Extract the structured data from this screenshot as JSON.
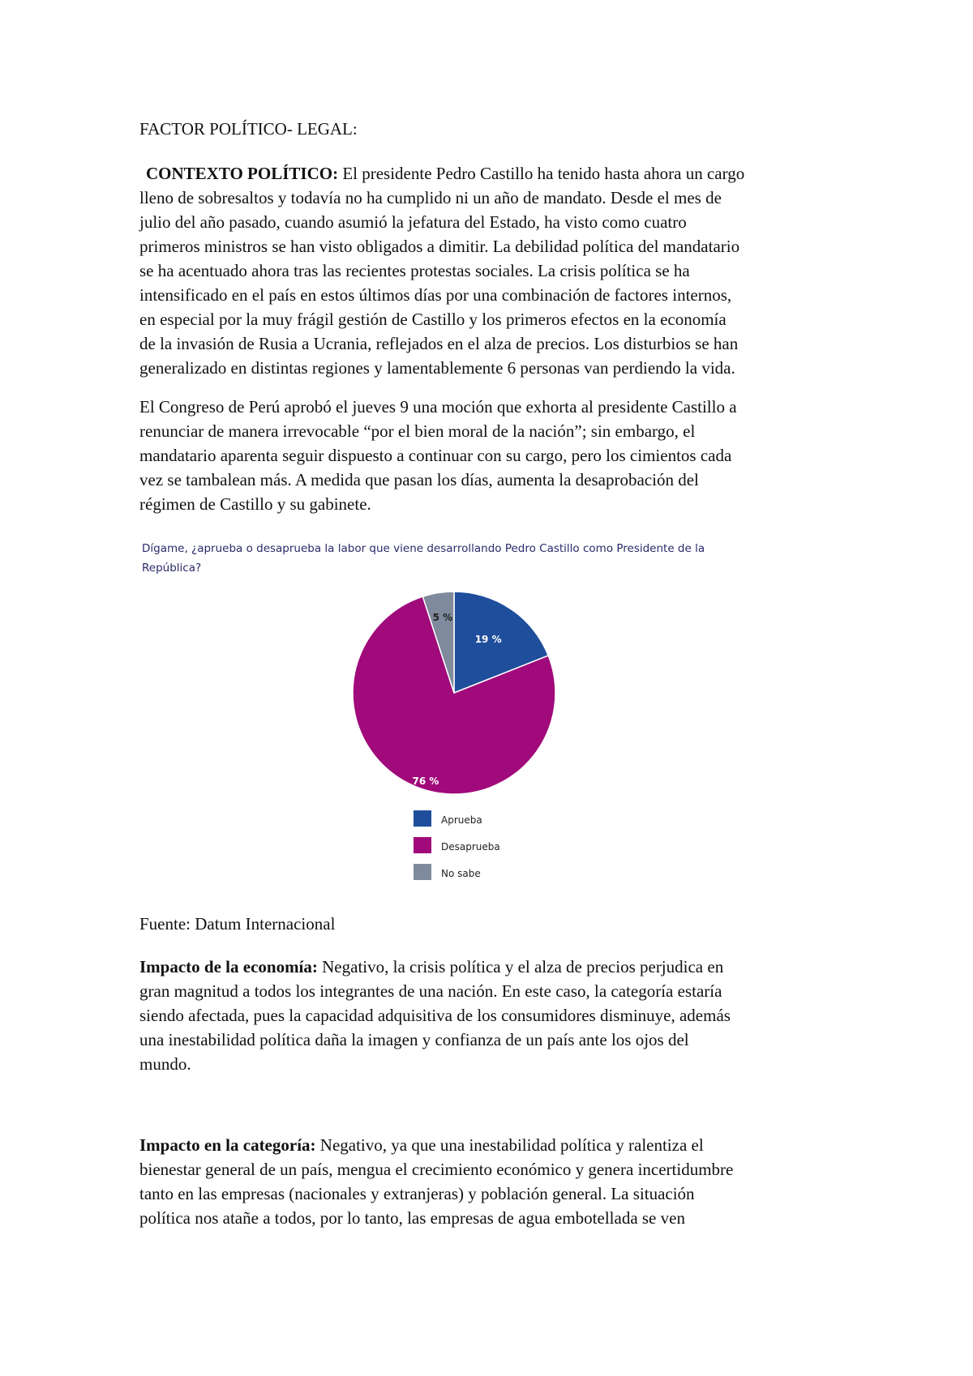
{
  "heading": "FACTOR POLÍTICO- LEGAL:",
  "contexto": {
    "label": "CONTEXTO POLÍTICO:",
    "lines": [
      " El presidente Pedro Castillo ha tenido hasta ahora un cargo",
      "lleno de sobresaltos y todavía no ha cumplido ni un año de mandato. Desde el mes de",
      "julio del año pasado, cuando asumió la jefatura del Estado, ha visto como cuatro",
      "primeros ministros se han visto obligados a dimitir. La debilidad política del mandatario",
      "se ha acentuado ahora tras las recientes protestas sociales. La crisis política se ha",
      "intensificado en el país en estos últimos días por una combinación de factores internos,",
      "en especial por la muy frágil gestión de Castillo y los primeros efectos en la economía",
      "de la invasión de Rusia a Ucrania, reflejados en el alza de precios. Los disturbios se han",
      "generalizado en distintas regiones y lamentablemente 6 personas van perdiendo la vida."
    ]
  },
  "congreso": {
    "lines": [
      "El Congreso de Perú aprobó el jueves 9 una moción que exhorta al presidente  Castillo a",
      "renunciar de manera irrevocable “por el bien moral de la nación”; sin embargo, el",
      "mandatario aparenta seguir dispuesto a continuar con su cargo, pero los cimientos cada",
      "vez se tambalean más. A medida que pasan los días, aumenta la desaprobación del",
      "régimen de Castillo y su gabinete."
    ]
  },
  "chart_data": {
    "type": "pie",
    "title": "Dígame, ¿aprueba o desaprueba la labor que viene desarrollando Pedro Castillo como Presidente de la República?",
    "categories": [
      "Aprueba",
      "Desaprueba",
      "No sabe"
    ],
    "values": [
      19,
      76,
      5
    ],
    "labels": [
      "19 %",
      "76 %",
      "5 %"
    ],
    "colors": [
      "#1f4e9c",
      "#a00a7a",
      "#7f8a9c"
    ],
    "legend": "bottom"
  },
  "fuente": "Fuente: Datum Internacional",
  "economia": {
    "label": "Impacto de la economía:",
    "lines": [
      " Negativo, la crisis política y el alza de precios perjudica en",
      "gran magnitud  a todos los integrantes de una nación. En este caso, la categoría estaría",
      "siendo afectada, pues la capacidad adquisitiva de los consumidores disminuye, además",
      "una inestabilidad política daña la imagen y confianza de un país ante los ojos del",
      "mundo."
    ]
  },
  "categoria": {
    "label": "Impacto en la categoría:",
    "lines": [
      " Negativo, ya que una inestabilidad política  y ralentiza el",
      "bienestar general de un país, mengua el crecimiento económico y  genera incertidumbre",
      "tanto en las empresas (nacionales y extranjeras) y población general. La situación",
      "política nos atañe a todos, por lo tanto, las empresas de agua embotellada se ven"
    ]
  }
}
